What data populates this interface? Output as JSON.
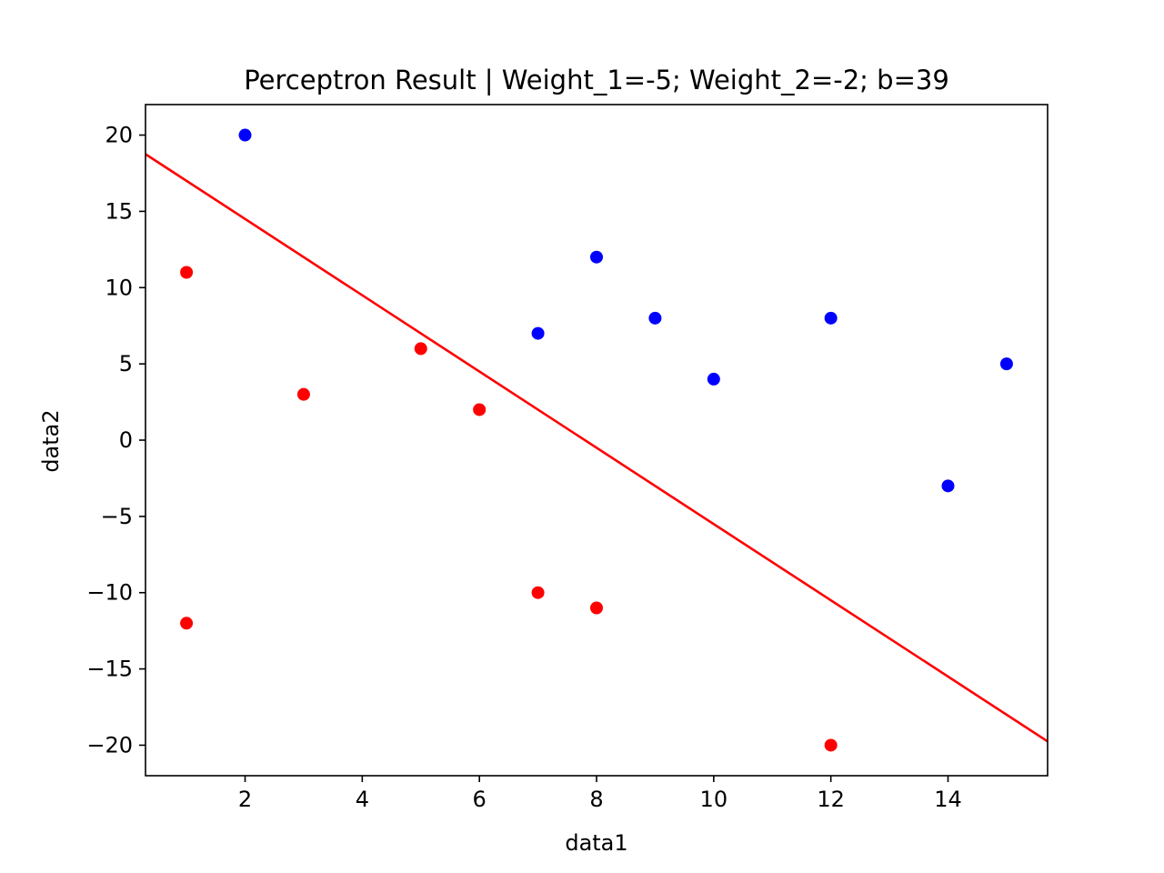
{
  "chart_data": {
    "type": "scatter",
    "title": "Perceptron Result | Weight_1=-5; Weight_2=-2; b=39",
    "xlabel": "data1",
    "ylabel": "data2",
    "xlim": [
      0.3,
      15.7
    ],
    "ylim": [
      -22,
      22
    ],
    "x_ticks": [
      2,
      4,
      6,
      8,
      10,
      12,
      14
    ],
    "y_ticks": [
      20,
      15,
      10,
      5,
      0,
      -5,
      -10,
      -15,
      -20
    ],
    "x_tick_labels": [
      "2",
      "4",
      "6",
      "8",
      "10",
      "12",
      "14"
    ],
    "y_tick_labels": [
      "20",
      "15",
      "10",
      "5",
      "0",
      "−5",
      "−10",
      "−15",
      "−20"
    ],
    "grid": false,
    "series": [
      {
        "color": "#0000ff",
        "points": [
          [
            2,
            20
          ],
          [
            8,
            12
          ],
          [
            7,
            7
          ],
          [
            9,
            8
          ],
          [
            12,
            8
          ],
          [
            10,
            4
          ],
          [
            15,
            5
          ],
          [
            14,
            -3
          ]
        ]
      },
      {
        "color": "#ff0000",
        "points": [
          [
            1,
            11
          ],
          [
            5,
            6
          ],
          [
            3,
            3
          ],
          [
            6,
            2
          ],
          [
            1,
            -12
          ],
          [
            7,
            -10
          ],
          [
            8,
            -11
          ],
          [
            12,
            -20
          ]
        ]
      }
    ],
    "decision_line": {
      "color": "#ff0000",
      "weight_1": -5,
      "weight_2": -2,
      "b": 39
    }
  }
}
